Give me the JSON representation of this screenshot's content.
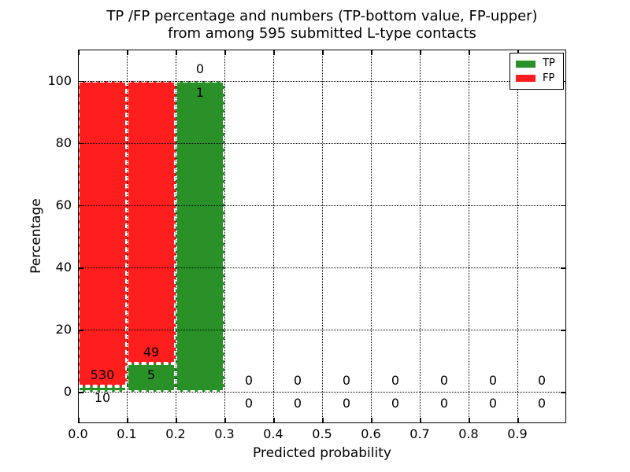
{
  "chart_data": {
    "type": "bar",
    "title_line1": "TP /FP percentage and numbers (TP-bottom value, FP-upper)",
    "title_line2": "from among 595 submitted L-type contacts",
    "xlabel": "Predicted probability",
    "ylabel": "Percentage",
    "total_submitted_contacts": 595,
    "xlim": [
      0.0,
      1.0
    ],
    "ylim": [
      -10,
      110
    ],
    "grid": true,
    "grid_style": "dotted",
    "x_tick_values": [
      0.0,
      0.1,
      0.2,
      0.3,
      0.4,
      0.5,
      0.6,
      0.7,
      0.8,
      0.9
    ],
    "x_tick_labels": [
      "0.0",
      "0.1",
      "0.2",
      "0.3",
      "0.4",
      "0.5",
      "0.6",
      "0.7",
      "0.8",
      "0.9"
    ],
    "y_tick_values": [
      0,
      20,
      40,
      60,
      80,
      100
    ],
    "y_tick_labels": [
      "0",
      "20",
      "40",
      "60",
      "80",
      "100"
    ],
    "bin_edges": [
      0.0,
      0.1,
      0.2,
      0.3,
      0.4,
      0.5,
      0.6,
      0.7,
      0.8,
      0.9,
      1.0
    ],
    "series": [
      {
        "name": "TP",
        "stack_position": "bottom",
        "counts": [
          10,
          5,
          1,
          0,
          0,
          0,
          0,
          0,
          0,
          0
        ],
        "percentages": [
          1.852,
          9.259,
          100,
          0,
          0,
          0,
          0,
          0,
          0,
          0
        ]
      },
      {
        "name": "FP",
        "stack_position": "top",
        "counts": [
          530,
          49,
          0,
          0,
          0,
          0,
          0,
          0,
          0,
          0
        ],
        "percentages": [
          98.148,
          90.741,
          0,
          0,
          0,
          0,
          0,
          0,
          0,
          0
        ]
      }
    ],
    "colors": {
      "tp": "#2a9128",
      "fp": "#ff1e1e",
      "grid": "#000000",
      "bar_edge": "#ffffff"
    },
    "legend": {
      "position": "upper right",
      "entries": [
        {
          "label": "TP",
          "color": "#2a9128"
        },
        {
          "label": "FP",
          "color": "#ff1e1e"
        }
      ]
    }
  }
}
